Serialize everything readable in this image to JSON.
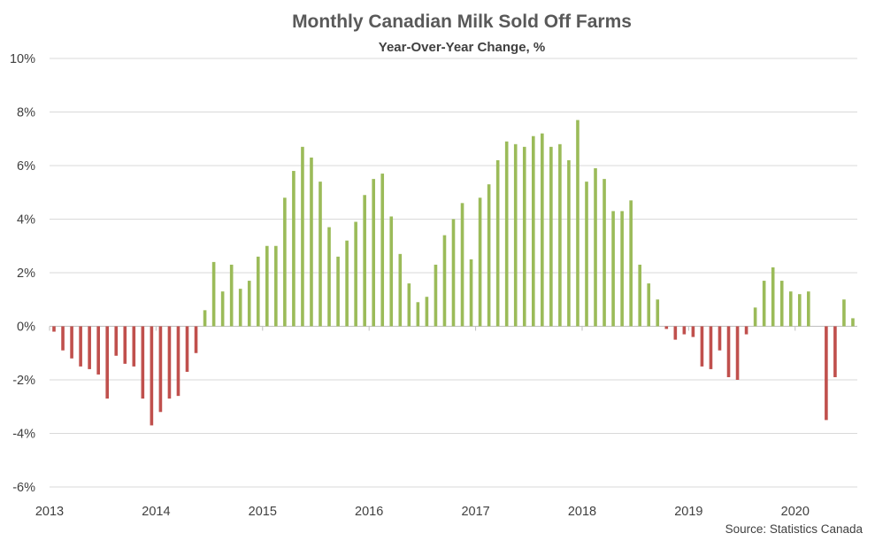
{
  "chart_data": {
    "type": "bar",
    "title": "Monthly Canadian Milk Sold Off Farms",
    "subtitle": "Year-Over-Year Change, %",
    "source": "Source: Statistics Canada",
    "xlabel": "",
    "ylabel": "",
    "ylim": [
      -6,
      10
    ],
    "y_ticks": [
      "-6%",
      "-4%",
      "-2%",
      "0%",
      "2%",
      "4%",
      "6%",
      "8%",
      "10%"
    ],
    "x_ticks": [
      "2013",
      "2014",
      "2015",
      "2016",
      "2017",
      "2018",
      "2019",
      "2020"
    ],
    "grid": true,
    "legend": "none",
    "colors": {
      "positive": "#9bbb59",
      "negative": "#c0504d"
    },
    "series": [
      {
        "values": [
          -0.2,
          -0.9,
          -1.2,
          -1.5,
          -1.6,
          -1.8,
          -2.7,
          -1.1,
          -1.4,
          -1.5,
          -2.7,
          -3.7,
          -3.2,
          -2.7,
          -2.6,
          -1.7,
          -1.0,
          0.6,
          2.4,
          1.3,
          2.3,
          1.4,
          1.7,
          2.6,
          3.0,
          3.0,
          4.8,
          5.8,
          6.7,
          6.3,
          5.4,
          3.7,
          2.6,
          3.2,
          3.9,
          4.9,
          5.5,
          5.7,
          4.1,
          2.7,
          1.6,
          0.9,
          1.1,
          2.3,
          3.4,
          4.0,
          4.6,
          2.5,
          4.8,
          5.3,
          6.2,
          6.9,
          6.8,
          6.7,
          7.1,
          7.2,
          6.7,
          6.8,
          6.2,
          7.7,
          5.4,
          5.9,
          5.5,
          4.3,
          4.3,
          4.7,
          2.3,
          1.6,
          1.0,
          -0.1,
          -0.5,
          -0.3,
          -0.4,
          -1.5,
          -1.6,
          -0.9,
          -1.9,
          -2.0,
          -0.3,
          0.7,
          1.7,
          2.2,
          1.7,
          1.3,
          1.2,
          1.3,
          0.0,
          -3.5,
          -1.9,
          1.0,
          0.3
        ]
      }
    ]
  }
}
